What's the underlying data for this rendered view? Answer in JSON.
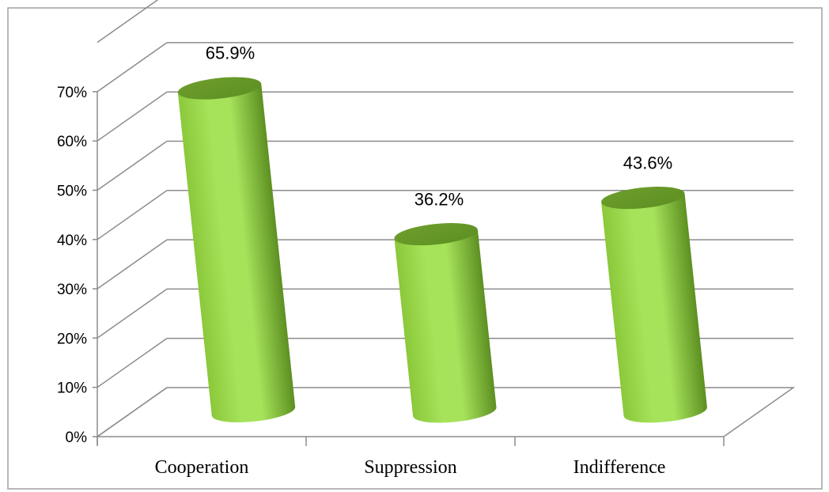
{
  "chart_data": {
    "type": "bar",
    "style": "3d-cylinder",
    "categories": [
      "Cooperation",
      "Suppression",
      "Indifference"
    ],
    "values": [
      65.9,
      36.2,
      43.6
    ],
    "data_labels": [
      "65.9%",
      "36.2%",
      "43.6%"
    ],
    "y_ticks": [
      "0%",
      "10%",
      "20%",
      "30%",
      "40%",
      "50%",
      "60%",
      "70%"
    ],
    "ylim": [
      0,
      70
    ],
    "title": "",
    "xlabel": "",
    "ylabel": "",
    "grid": true,
    "legend": "none",
    "colors": {
      "bar_light": "#a6e35a",
      "bar_mid": "#8bc83a",
      "bar_dark": "#5d8f22",
      "bar_top": "#6e9e2c",
      "grid": "#8c8c8c",
      "border": "#a0a0a0"
    }
  }
}
